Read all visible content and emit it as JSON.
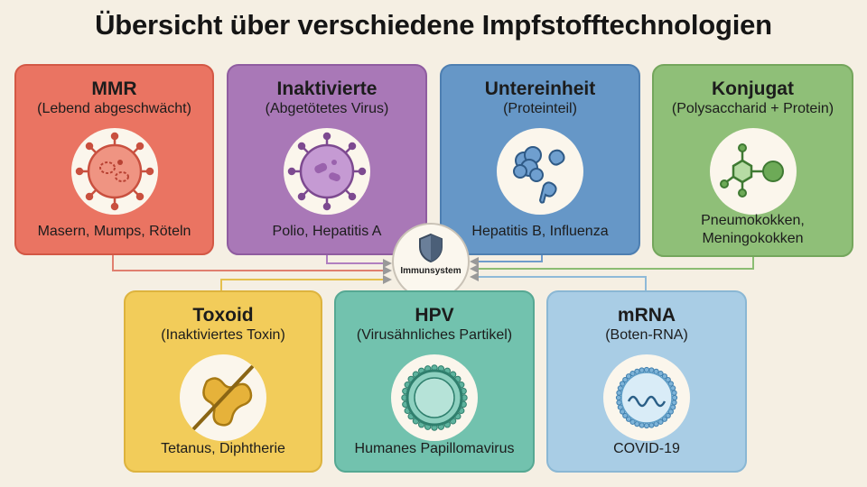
{
  "title": "Übersicht über verschiedene Impfstofftechnologien",
  "center": {
    "label": "Immunsystem",
    "icon": "shield-icon"
  },
  "vaccines": [
    {
      "id": "mmr",
      "name": "MMR",
      "subtitle": "(Lebend abgeschwächt)",
      "examples": "Masern, Mumps, Röteln",
      "icon": "attenuated-virus-icon",
      "color": "#ea7462"
    },
    {
      "id": "inactivated",
      "name": "Inaktivierte",
      "subtitle": "(Abgetötetes Virus)",
      "examples": "Polio, Hepatitis A",
      "icon": "inactivated-virus-icon",
      "color": "#a978b7"
    },
    {
      "id": "subunit",
      "name": "Untereinheit",
      "subtitle": "(Proteinteil)",
      "examples": "Hepatitis B, Influenza",
      "icon": "protein-subunit-icon",
      "color": "#6697c7"
    },
    {
      "id": "conjugate",
      "name": "Konjugat",
      "subtitle": "(Polysaccharid + Protein)",
      "examples": "Pneumokokken,\nMeningokokken",
      "icon": "conjugate-molecule-icon",
      "color": "#8fbf78"
    },
    {
      "id": "toxoid",
      "name": "Toxoid",
      "subtitle": "(Inaktiviertes Toxin)",
      "examples": "Tetanus, Diphtherie",
      "icon": "neutralized-toxin-icon",
      "color": "#f2cc5a"
    },
    {
      "id": "hpv",
      "name": "HPV",
      "subtitle": "(Virusähnliches Partikel)",
      "examples": "Humanes Papillomavirus",
      "icon": "virus-like-particle-icon",
      "color": "#72c2ae"
    },
    {
      "id": "mrna",
      "name": "mRNA",
      "subtitle": "(Boten-RNA)",
      "examples": "COVID-19",
      "icon": "mrna-lipid-nanoparticle-icon",
      "color": "#a9cde5"
    }
  ]
}
